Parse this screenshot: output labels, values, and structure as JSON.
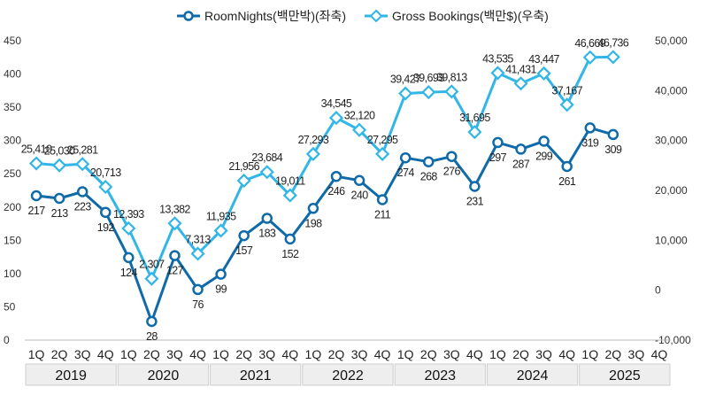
{
  "chart_data": {
    "type": "line",
    "categories": [
      "1Q",
      "2Q",
      "3Q",
      "4Q",
      "1Q",
      "2Q",
      "3Q",
      "4Q",
      "1Q",
      "2Q",
      "3Q",
      "4Q",
      "1Q",
      "2Q",
      "3Q",
      "4Q",
      "1Q",
      "2Q",
      "3Q",
      "4Q",
      "1Q",
      "2Q",
      "3Q",
      "4Q",
      "1Q",
      "2Q",
      "3Q",
      "4Q"
    ],
    "years": [
      "2019",
      "2020",
      "2021",
      "2022",
      "2023",
      "2024",
      "2025"
    ],
    "series": [
      {
        "name": "RoomNights(백만박)(좌축)",
        "axis": "left",
        "color": "#0E6AA8",
        "marker": "circle",
        "values": [
          217,
          213,
          223,
          192,
          124,
          28,
          127,
          76,
          99,
          157,
          183,
          152,
          198,
          246,
          240,
          211,
          274,
          268,
          276,
          231,
          297,
          287,
          299,
          261,
          319,
          309,
          null,
          null
        ],
        "labels": [
          "217",
          "213",
          "223",
          "192",
          "124",
          "28",
          "127",
          "76",
          "99",
          "157",
          "183",
          "152",
          "198",
          "246",
          "240",
          "211",
          "274",
          "268",
          "276",
          "231",
          "297",
          "287",
          "299",
          "261",
          "319",
          "309",
          "",
          ""
        ]
      },
      {
        "name": "Gross Bookings(백만$)(우축)",
        "axis": "right",
        "color": "#31B6E7",
        "marker": "diamond",
        "values": [
          25410,
          25030,
          25281,
          20713,
          12393,
          2307,
          13382,
          7313,
          11935,
          21956,
          23684,
          19011,
          27293,
          34545,
          32120,
          27295,
          39427,
          39693,
          39813,
          31695,
          43535,
          41431,
          43447,
          37167,
          46669,
          46736,
          null,
          null
        ],
        "labels": [
          "25,410",
          "25,030",
          "25,281",
          "20,713",
          "12,393",
          "2,307",
          "13,382",
          "7,313",
          "11,935",
          "21,956",
          "23,684",
          "19,011",
          "27,293",
          "34,545",
          "32,120",
          "27,295",
          "39,427",
          "39,693",
          "39,813",
          "31,695",
          "43,535",
          "41,431",
          "43,447",
          "37,167",
          "46,669",
          "46,736",
          "",
          ""
        ]
      }
    ],
    "y_left": {
      "min": 0,
      "max": 450,
      "ticks": [
        "0",
        "50",
        "100",
        "150",
        "200",
        "250",
        "300",
        "350",
        "400",
        "450"
      ]
    },
    "y_right": {
      "min": -10000,
      "max": 50000,
      "ticks": [
        "-10,000",
        "0",
        "10,000",
        "20,000",
        "30,000",
        "40,000",
        "50,000"
      ]
    },
    "grid": false,
    "legend_position": "top-center"
  }
}
